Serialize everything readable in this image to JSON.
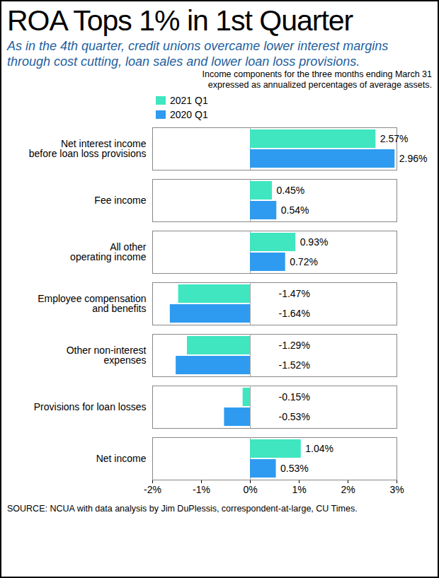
{
  "chart_data": {
    "type": "bar",
    "orientation": "horizontal",
    "title": "ROA Tops 1% in 1st Quarter",
    "subtitle": "As in the 4th quarter, credit unions overcame lower interest margins through cost cutting, loan sales and lower loan loss provisions.",
    "annotations": [
      "Income components for the three months ending March 31\nexpressed as annualized percentages of average assets."
    ],
    "caption": "SOURCE: NCUA with data analysis by Jim DuPlessis, correspondent-at-large, CU Times.",
    "categories": [
      "Net interest income\nbefore loan loss provisions",
      "Fee income",
      "All other\noperating income",
      "Employee compensation\nand benefits",
      "Other non-interest\nexpenses",
      "Provisions for loan losses",
      "Net income"
    ],
    "series": [
      {
        "name": "2021 Q1",
        "color": "#3fe6c0",
        "values": [
          2.57,
          0.45,
          0.93,
          -1.47,
          -1.29,
          -0.15,
          1.04
        ],
        "value_labels": [
          "2.57%",
          "0.45%",
          "0.93%",
          "-1.47%",
          "-1.29%",
          "-0.15%",
          "1.04%"
        ]
      },
      {
        "name": "2020 Q1",
        "color": "#2e9bf0",
        "values": [
          2.96,
          0.54,
          0.72,
          -1.64,
          -1.52,
          -0.53,
          0.53
        ],
        "value_labels": [
          "2.96%",
          "0.54%",
          "0.72%",
          "-1.64%",
          "-1.52%",
          "-0.53%",
          "0.53%"
        ]
      }
    ],
    "xlim": [
      -2,
      3
    ],
    "xticks": [
      {
        "value": -2,
        "label": "-2%"
      },
      {
        "value": -1,
        "label": "-1%"
      },
      {
        "value": 0,
        "label": "0%"
      },
      {
        "value": 1,
        "label": "1%"
      },
      {
        "value": 2,
        "label": "2%"
      },
      {
        "value": 3,
        "label": "3%"
      }
    ],
    "data_labels": true,
    "legend": "top"
  }
}
